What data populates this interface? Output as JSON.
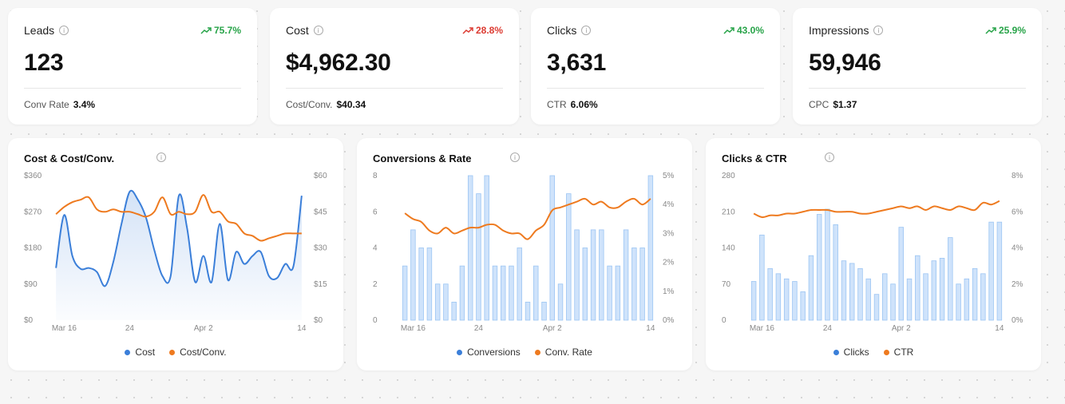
{
  "colors": {
    "blue": "#3b7fd9",
    "orange": "#ee7a1f",
    "green": "#27a348",
    "red": "#dc3b32",
    "bar_fill": "#cfe3fb",
    "bar_stroke": "#9cc5f3"
  },
  "kpis": [
    {
      "label": "Leads",
      "value": "123",
      "change": "75.7%",
      "trend": "up",
      "sub_label": "Conv Rate",
      "sub_value": "3.4%"
    },
    {
      "label": "Cost",
      "value": "$4,962.30",
      "change": "28.8%",
      "trend": "up-bad",
      "sub_label": "Cost/Conv.",
      "sub_value": "$40.34"
    },
    {
      "label": "Clicks",
      "value": "3,631",
      "change": "43.0%",
      "trend": "up",
      "sub_label": "CTR",
      "sub_value": "6.06%"
    },
    {
      "label": "Impressions",
      "value": "59,946",
      "change": "25.9%",
      "trend": "up",
      "sub_label": "CPC",
      "sub_value": "$1.37"
    }
  ],
  "chart_data": [
    {
      "type": "area",
      "title": "Cost & Cost/Conv.",
      "x_ticks": [
        "Mar 16",
        "24",
        "Apr 2",
        "14"
      ],
      "x_tick_index": [
        1,
        9,
        18,
        30
      ],
      "y_left_ticks": [
        "$0",
        "$90",
        "$180",
        "$270",
        "$360"
      ],
      "y_right_ticks": [
        "$0",
        "$15",
        "$30",
        "$45",
        "$60"
      ],
      "ylim_left": [
        0,
        360
      ],
      "ylim_right": [
        0,
        60
      ],
      "series": [
        {
          "name": "Cost",
          "type": "area",
          "axis": "left",
          "values": [
            130,
            262,
            160,
            128,
            130,
            120,
            85,
            145,
            240,
            320,
            300,
            255,
            175,
            110,
            110,
            310,
            230,
            95,
            160,
            95,
            240,
            100,
            170,
            140,
            160,
            170,
            110,
            105,
            140,
            135,
            310
          ]
        },
        {
          "name": "Cost/Conv.",
          "type": "line",
          "axis": "right",
          "values": [
            44,
            47,
            49,
            50,
            51,
            46,
            45,
            46,
            45,
            45,
            44,
            43,
            45,
            51,
            44,
            45,
            44,
            45,
            52,
            45,
            45,
            41,
            40,
            36,
            35,
            33,
            34,
            35,
            36,
            36,
            36
          ]
        }
      ]
    },
    {
      "type": "bar",
      "title": "Conversions & Rate",
      "x_ticks": [
        "Mar 16",
        "24",
        "Apr 2",
        "14"
      ],
      "x_tick_index": [
        1,
        9,
        18,
        30
      ],
      "y_left_ticks": [
        "0",
        "2",
        "4",
        "6",
        "8"
      ],
      "y_right_ticks": [
        "0%",
        "1%",
        "2%",
        "3%",
        "4%",
        "5%"
      ],
      "ylim_left": [
        0,
        8
      ],
      "ylim_right": [
        0,
        5
      ],
      "series": [
        {
          "name": "Conversions",
          "type": "bar",
          "axis": "left",
          "values": [
            3,
            5,
            4,
            4,
            2,
            2,
            1,
            3,
            8,
            7,
            8,
            3,
            3,
            3,
            4,
            1,
            3,
            1,
            8,
            2,
            7,
            5,
            4,
            5,
            5,
            3,
            3,
            5,
            4,
            4,
            8
          ]
        },
        {
          "name": "Conv. Rate",
          "type": "line",
          "axis": "right",
          "values": [
            3.7,
            3.5,
            3.4,
            3.1,
            3.0,
            3.2,
            3.0,
            3.1,
            3.2,
            3.2,
            3.3,
            3.3,
            3.1,
            3.0,
            3.0,
            2.8,
            3.1,
            3.3,
            3.8,
            3.9,
            4.0,
            4.1,
            4.2,
            4.0,
            4.1,
            3.9,
            3.9,
            4.1,
            4.2,
            4.0,
            4.2
          ]
        }
      ]
    },
    {
      "type": "bar",
      "title": "Clicks & CTR",
      "x_ticks": [
        "Mar 16",
        "24",
        "Apr 2",
        "14"
      ],
      "x_tick_index": [
        1,
        9,
        18,
        30
      ],
      "y_left_ticks": [
        "0",
        "70",
        "140",
        "210",
        "280"
      ],
      "y_right_ticks": [
        "0%",
        "2%",
        "4%",
        "6%",
        "8%"
      ],
      "ylim_left": [
        0,
        280
      ],
      "ylim_right": [
        0,
        8
      ],
      "series": [
        {
          "name": "Clicks",
          "type": "bar",
          "axis": "left",
          "values": [
            75,
            165,
            100,
            90,
            80,
            75,
            55,
            125,
            205,
            215,
            185,
            115,
            110,
            100,
            80,
            50,
            90,
            70,
            180,
            80,
            125,
            90,
            115,
            120,
            160,
            70,
            80,
            100,
            90,
            190,
            190
          ]
        },
        {
          "name": "CTR",
          "type": "line",
          "axis": "right",
          "values": [
            5.9,
            5.7,
            5.8,
            5.8,
            5.9,
            5.9,
            6.0,
            6.1,
            6.1,
            6.1,
            6.0,
            6.0,
            6.0,
            5.9,
            5.9,
            6.0,
            6.1,
            6.2,
            6.3,
            6.2,
            6.3,
            6.1,
            6.3,
            6.2,
            6.1,
            6.3,
            6.2,
            6.1,
            6.5,
            6.4,
            6.6
          ]
        }
      ]
    }
  ]
}
